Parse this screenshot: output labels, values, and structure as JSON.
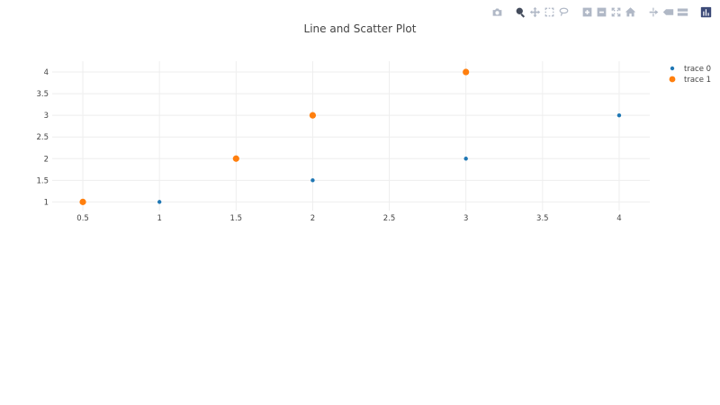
{
  "modebar": {
    "buttons": [
      {
        "name": "camera-icon",
        "group": 0
      },
      {
        "name": "zoom-icon",
        "group": 1,
        "active": true
      },
      {
        "name": "pan-icon",
        "group": 1
      },
      {
        "name": "box-select-icon",
        "group": 1
      },
      {
        "name": "lasso-select-icon",
        "group": 1
      },
      {
        "name": "zoom-in-icon",
        "group": 2
      },
      {
        "name": "zoom-out-icon",
        "group": 2
      },
      {
        "name": "autoscale-icon",
        "group": 2
      },
      {
        "name": "reset-axes-icon",
        "group": 2
      },
      {
        "name": "spike-lines-icon",
        "group": 3
      },
      {
        "name": "hover-closest-icon",
        "group": 3
      },
      {
        "name": "hover-compare-icon",
        "group": 3
      },
      {
        "name": "plotly-logo-icon",
        "group": 4
      }
    ]
  },
  "chart_data": {
    "type": "scatter",
    "title": "Line and Scatter Plot",
    "xlabel": "",
    "ylabel": "",
    "xlim": [
      0.3,
      4.2
    ],
    "ylim": [
      0.8,
      4.25
    ],
    "x_ticks": [
      0.5,
      1,
      1.5,
      2,
      2.5,
      3,
      3.5,
      4
    ],
    "y_ticks": [
      1,
      1.5,
      2,
      2.5,
      3,
      3.5,
      4
    ],
    "grid": true,
    "legend": "top-right",
    "series": [
      {
        "name": "trace 0",
        "color": "#1f77b4",
        "marker": "small",
        "x": [
          1,
          2,
          3,
          4
        ],
        "y": [
          1,
          1.5,
          2,
          3
        ]
      },
      {
        "name": "trace 1",
        "color": "#ff7f0e",
        "marker": "large",
        "x": [
          0.5,
          1.5,
          2,
          3
        ],
        "y": [
          1,
          2,
          3,
          4
        ]
      }
    ]
  }
}
